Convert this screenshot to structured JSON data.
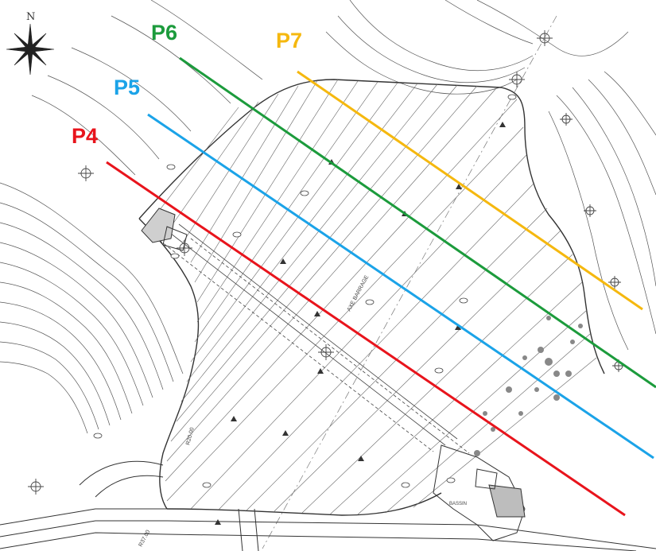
{
  "compass": {
    "label": "N"
  },
  "profiles": [
    {
      "id": "P4",
      "label": "P4",
      "color": "#e8141c"
    },
    {
      "id": "P5",
      "label": "P5",
      "color": "#1ba3e8"
    },
    {
      "id": "P6",
      "label": "P6",
      "color": "#1c9b3c"
    },
    {
      "id": "P7",
      "label": "P7",
      "color": "#f5b80f"
    }
  ],
  "drawing_text": {
    "axis_label": "AXE BARRAGE",
    "elevation_label": "R37.00",
    "curve_label": "R20.00",
    "structure_label": "BASSIN"
  }
}
